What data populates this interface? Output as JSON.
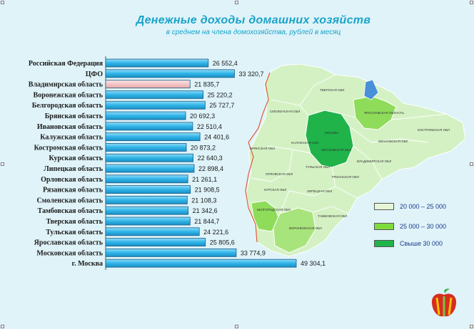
{
  "title": "Денежные  доходы домашних хозяйств",
  "subtitle": "в среднем на члена домохозяйства, рублей в месяц",
  "colors": {
    "bar_fill": "#30b4e8",
    "bar_highlight": "#f4c6c6",
    "background": "#dff3f9",
    "map_light": "#d4f1c4",
    "map_medium": "#8fdc5a",
    "map_dark": "#1fb34a"
  },
  "chart_data": {
    "type": "bar",
    "orientation": "horizontal",
    "xlim": [
      0,
      50000
    ],
    "categories": [
      "Российская Федерация",
      "ЦФО",
      "Владимирская область",
      "Воронежская область",
      "Белгородская область",
      "Брянская область",
      "Ивановская область",
      "Калужская область",
      "Костромская область",
      "Курская область",
      "Липецкая область",
      "Орловская область",
      "Рязанская область",
      "Смоленская область",
      "Тамбовская область",
      "Тверская область",
      "Тульская область",
      "Ярославская область",
      "Московская область",
      "г. Москва"
    ],
    "values": [
      26552.4,
      33320.7,
      21835.7,
      25220.2,
      25727.7,
      20692.3,
      22510.4,
      24401.6,
      20873.2,
      22640.3,
      22898.4,
      21261.1,
      21908.5,
      21108.3,
      21342.6,
      21844.7,
      24221.6,
      25805.6,
      33774.9,
      49304.1
    ],
    "value_labels": [
      "26 552,4",
      "33 320,7",
      "21 835,7",
      "25 220,2",
      "25 727,7",
      "20 692,3",
      "22 510,4",
      "24 401,6",
      "20 873,2",
      "22 640,3",
      "22 898,4",
      "21 261,1",
      "21 908,5",
      "21 108,3",
      "21 342,6",
      "21 844,7",
      "24 221,6",
      "25 805,6",
      "33 774,9",
      "49 304,1"
    ],
    "highlighted": "Владимирская область"
  },
  "map": {
    "legend": [
      {
        "label": "20 000  – 25 000",
        "color": "#e6f7d8"
      },
      {
        "label": "25 000  – 30 000",
        "color": "#7edb3c"
      },
      {
        "label": "Свыше 30 000",
        "color": "#1fb34a"
      }
    ],
    "region_labels": [
      "ТВЕРСКАЯ ОБЛ",
      "ЯРОСЛАВСКАЯ ОБЛАСТЬ",
      "КОСТРОМСКАЯ ОБЛ",
      "ИВАНОВСКАЯ ОБЛ",
      "СМОЛЕНСКАЯ ОБЛ",
      "МОСКВА",
      "МОСКОВСКАЯ ОБЛ",
      "ВЛАДИМИРСКАЯ ОБЛ",
      "БРЯНСКАЯ ОБЛ",
      "КАЛУЖСКАЯ ОБЛ",
      "ТУЛЬСКАЯ ОБЛ",
      "ОРЛОВСКАЯ ОБЛ",
      "РЯЗАНСКАЯ ОБЛ",
      "КУРСКАЯ ОБЛ",
      "ЛИПЕЦКАЯ ОБЛ",
      "БЕЛГОРОДСКАЯ ОБЛ",
      "ВОРОНЕЖСКАЯ ОБЛ",
      "ТАМБОВСКАЯ ОБЛ"
    ]
  }
}
